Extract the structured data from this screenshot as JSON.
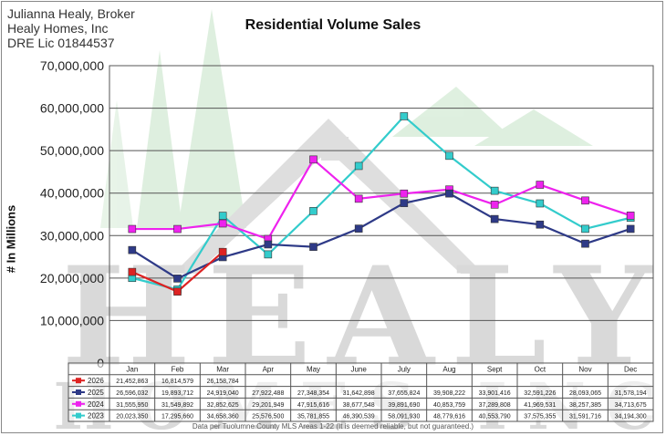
{
  "header": {
    "line1": "Julianna Healy, Broker",
    "line2": "Healy Homes, Inc",
    "line3": "DRE Lic 01844537"
  },
  "watermark": {
    "text1": "HEALY",
    "text2": "HOMES INC"
  },
  "footnote": "Data per Tuolumne County MLS Areas 1-22 (It is deemed reliable, but not guaranteed.)",
  "chart_data": {
    "type": "line",
    "title": "Residential Volume Sales",
    "ylabel": "# In Millions",
    "xlabel": "",
    "ylim": [
      0,
      70000000
    ],
    "yticks": [
      "0",
      "10,000,000",
      "20,000,000",
      "30,000,000",
      "40,000,000",
      "50,000,000",
      "60,000,000",
      "70,000,000"
    ],
    "grid": true,
    "legend": "data-table-below",
    "categories": [
      "Jan",
      "Feb",
      "Mar",
      "Apr",
      "May",
      "June",
      "July",
      "Aug",
      "Sept",
      "Oct",
      "Nov",
      "Dec"
    ],
    "series": [
      {
        "name": "2026",
        "color": "#dd2222",
        "values": [
          21452863,
          16814579,
          26158784,
          null,
          null,
          null,
          null,
          null,
          null,
          null,
          null,
          null
        ],
        "labels": [
          "21,452,863",
          "16,814,579",
          "26,158,784",
          "",
          "",
          "",
          "",
          "",
          "",
          "",
          "",
          ""
        ]
      },
      {
        "name": "2025",
        "color": "#2e3a87",
        "values": [
          26596032,
          19893712,
          24919040,
          27922488,
          27348354,
          31642898,
          37655824,
          39908222,
          33901416,
          32591226,
          28093065,
          31578194
        ],
        "labels": [
          "26,596,032",
          "19,893,712",
          "24,919,040",
          "27,922,488",
          "27,348,354",
          "31,642,898",
          "37,655,824",
          "39,908,222",
          "33,901,416",
          "32,591,226",
          "28,093,065",
          "31,578,194"
        ]
      },
      {
        "name": "2024",
        "color": "#ee22ee",
        "values": [
          31555950,
          31549892,
          32852625,
          29201949,
          47915616,
          38677548,
          39891690,
          40853759,
          37289808,
          41969531,
          38257385,
          34713675
        ],
        "labels": [
          "31,555,950",
          "31,549,892",
          "32,852,625",
          "29,201,949",
          "47,915,616",
          "38,677,548",
          "39,891,690",
          "40,853,759",
          "37,289,808",
          "41,969,531",
          "38,257,385",
          "34,713,675"
        ]
      },
      {
        "name": "2023",
        "color": "#33cccc",
        "values": [
          20023350,
          17295660,
          34658360,
          25576500,
          35781855,
          46390539,
          58091930,
          48779616,
          40553790,
          37575355,
          31591716,
          34194300
        ],
        "labels": [
          "20,023,350",
          "17,295,660",
          "34,658,360",
          "25,576,500",
          "35,781,855",
          "46,390,539",
          "58,091,930",
          "48,779,616",
          "40,553,790",
          "37,575,355",
          "31,591,716",
          "34,194,300"
        ]
      }
    ]
  }
}
